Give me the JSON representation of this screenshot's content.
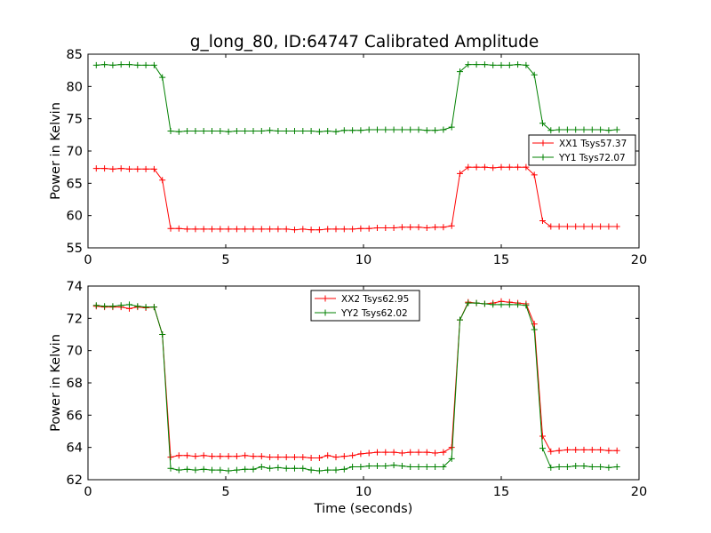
{
  "title": "g_long_80, ID:64747 Calibrated Amplitude",
  "chart_data": [
    {
      "type": "line",
      "ylabel": "Power in Kelvin",
      "xlabel": "",
      "xlim": [
        0,
        20
      ],
      "ylim": [
        55,
        85
      ],
      "x_ticks": [
        0,
        5,
        10,
        15,
        20
      ],
      "y_ticks": [
        55,
        60,
        65,
        70,
        75,
        80,
        85
      ],
      "grid": false,
      "legend_position": "right",
      "series": [
        {
          "name": "XX1 Tsys57.37",
          "color": "#ff0000",
          "x": [
            0.3,
            0.6,
            0.9,
            1.2,
            1.5,
            1.8,
            2.1,
            2.4,
            2.7,
            3.0,
            3.3,
            3.6,
            3.9,
            4.2,
            4.5,
            4.8,
            5.1,
            5.4,
            5.7,
            6.0,
            6.3,
            6.6,
            6.9,
            7.2,
            7.5,
            7.8,
            8.1,
            8.4,
            8.7,
            9.0,
            9.3,
            9.6,
            9.9,
            10.2,
            10.5,
            10.8,
            11.1,
            11.4,
            11.7,
            12.0,
            12.3,
            12.6,
            12.9,
            13.2,
            13.5,
            13.8,
            14.1,
            14.4,
            14.7,
            15.0,
            15.3,
            15.6,
            15.9,
            16.2,
            16.5,
            16.8,
            17.1,
            17.4,
            17.7,
            18.0,
            18.3,
            18.6,
            18.9,
            19.2
          ],
          "y": [
            67.3,
            67.3,
            67.2,
            67.3,
            67.2,
            67.2,
            67.2,
            67.2,
            65.5,
            58.0,
            58.0,
            57.9,
            57.9,
            57.9,
            57.9,
            57.9,
            57.9,
            57.9,
            57.9,
            57.9,
            57.9,
            57.9,
            57.9,
            57.9,
            57.8,
            57.9,
            57.8,
            57.8,
            57.9,
            57.9,
            57.9,
            57.9,
            58.0,
            58.0,
            58.1,
            58.1,
            58.1,
            58.2,
            58.2,
            58.2,
            58.1,
            58.2,
            58.2,
            58.4,
            66.5,
            67.5,
            67.5,
            67.5,
            67.4,
            67.5,
            67.5,
            67.5,
            67.5,
            66.3,
            59.2,
            58.3,
            58.3,
            58.3,
            58.3,
            58.3,
            58.3,
            58.3,
            58.3,
            58.3
          ]
        },
        {
          "name": "YY1 Tsys72.07",
          "color": "#008000",
          "x": [
            0.3,
            0.6,
            0.9,
            1.2,
            1.5,
            1.8,
            2.1,
            2.4,
            2.7,
            3.0,
            3.3,
            3.6,
            3.9,
            4.2,
            4.5,
            4.8,
            5.1,
            5.4,
            5.7,
            6.0,
            6.3,
            6.6,
            6.9,
            7.2,
            7.5,
            7.8,
            8.1,
            8.4,
            8.7,
            9.0,
            9.3,
            9.6,
            9.9,
            10.2,
            10.5,
            10.8,
            11.1,
            11.4,
            11.7,
            12.0,
            12.3,
            12.6,
            12.9,
            13.2,
            13.5,
            13.8,
            14.1,
            14.4,
            14.7,
            15.0,
            15.3,
            15.6,
            15.9,
            16.2,
            16.5,
            16.8,
            17.1,
            17.4,
            17.7,
            18.0,
            18.3,
            18.6,
            18.9,
            19.2
          ],
          "y": [
            83.3,
            83.4,
            83.3,
            83.4,
            83.4,
            83.3,
            83.3,
            83.3,
            81.4,
            73.1,
            73.0,
            73.1,
            73.1,
            73.1,
            73.1,
            73.1,
            73.0,
            73.1,
            73.1,
            73.1,
            73.1,
            73.2,
            73.1,
            73.1,
            73.1,
            73.1,
            73.1,
            73.0,
            73.1,
            73.0,
            73.2,
            73.2,
            73.2,
            73.3,
            73.3,
            73.3,
            73.3,
            73.3,
            73.3,
            73.3,
            73.2,
            73.2,
            73.3,
            73.7,
            82.3,
            83.4,
            83.4,
            83.4,
            83.3,
            83.3,
            83.3,
            83.4,
            83.3,
            81.8,
            74.3,
            73.2,
            73.3,
            73.3,
            73.3,
            73.3,
            73.3,
            73.3,
            73.2,
            73.3
          ]
        }
      ]
    },
    {
      "type": "line",
      "ylabel": "Power in Kelvin",
      "xlabel": "Time (seconds)",
      "xlim": [
        0,
        20
      ],
      "ylim": [
        62,
        74
      ],
      "x_ticks": [
        0,
        5,
        10,
        15,
        20
      ],
      "y_ticks": [
        62,
        64,
        66,
        68,
        70,
        72,
        74
      ],
      "grid": false,
      "legend_position": "top-center",
      "series": [
        {
          "name": "XX2 Tsys62.95",
          "color": "#ff0000",
          "x": [
            0.3,
            0.6,
            0.9,
            1.2,
            1.5,
            1.8,
            2.1,
            2.4,
            2.7,
            3.0,
            3.3,
            3.6,
            3.9,
            4.2,
            4.5,
            4.8,
            5.1,
            5.4,
            5.7,
            6.0,
            6.3,
            6.6,
            6.9,
            7.2,
            7.5,
            7.8,
            8.1,
            8.4,
            8.7,
            9.0,
            9.3,
            9.6,
            9.9,
            10.2,
            10.5,
            10.8,
            11.1,
            11.4,
            11.7,
            12.0,
            12.3,
            12.6,
            12.9,
            13.2,
            13.5,
            13.8,
            14.1,
            14.4,
            14.7,
            15.0,
            15.3,
            15.6,
            15.9,
            16.2,
            16.5,
            16.8,
            17.1,
            17.4,
            17.7,
            18.0,
            18.3,
            18.6,
            18.9,
            19.2
          ],
          "y": [
            72.75,
            72.7,
            72.7,
            72.7,
            72.6,
            72.7,
            72.65,
            72.7,
            71.0,
            63.4,
            63.5,
            63.5,
            63.45,
            63.5,
            63.45,
            63.45,
            63.45,
            63.45,
            63.5,
            63.45,
            63.45,
            63.4,
            63.4,
            63.4,
            63.4,
            63.4,
            63.35,
            63.35,
            63.5,
            63.4,
            63.45,
            63.5,
            63.6,
            63.65,
            63.7,
            63.7,
            63.7,
            63.65,
            63.7,
            63.7,
            63.7,
            63.65,
            63.7,
            64.0,
            71.9,
            73.0,
            72.95,
            72.9,
            72.95,
            73.05,
            73.0,
            72.95,
            72.9,
            71.65,
            64.7,
            63.75,
            63.8,
            63.85,
            63.85,
            63.85,
            63.85,
            63.85,
            63.8,
            63.8
          ]
        },
        {
          "name": "YY2 Tsys62.02",
          "color": "#008000",
          "x": [
            0.3,
            0.6,
            0.9,
            1.2,
            1.5,
            1.8,
            2.1,
            2.4,
            2.7,
            3.0,
            3.3,
            3.6,
            3.9,
            4.2,
            4.5,
            4.8,
            5.1,
            5.4,
            5.7,
            6.0,
            6.3,
            6.6,
            6.9,
            7.2,
            7.5,
            7.8,
            8.1,
            8.4,
            8.7,
            9.0,
            9.3,
            9.6,
            9.9,
            10.2,
            10.5,
            10.8,
            11.1,
            11.4,
            11.7,
            12.0,
            12.3,
            12.6,
            12.9,
            13.2,
            13.5,
            13.8,
            14.1,
            14.4,
            14.7,
            15.0,
            15.3,
            15.6,
            15.9,
            16.2,
            16.5,
            16.8,
            17.1,
            17.4,
            17.7,
            18.0,
            18.3,
            18.6,
            18.9,
            19.2
          ],
          "y": [
            72.8,
            72.75,
            72.75,
            72.8,
            72.85,
            72.75,
            72.7,
            72.7,
            71.0,
            62.7,
            62.6,
            62.65,
            62.6,
            62.65,
            62.6,
            62.6,
            62.55,
            62.6,
            62.65,
            62.65,
            62.8,
            62.7,
            62.75,
            62.7,
            62.7,
            62.7,
            62.6,
            62.55,
            62.6,
            62.6,
            62.65,
            62.8,
            62.8,
            62.85,
            62.85,
            62.85,
            62.9,
            62.85,
            62.8,
            62.8,
            62.8,
            62.8,
            62.8,
            63.3,
            71.9,
            72.95,
            72.95,
            72.9,
            72.85,
            72.85,
            72.85,
            72.85,
            72.8,
            71.3,
            63.95,
            62.75,
            62.8,
            62.8,
            62.85,
            62.85,
            62.8,
            62.8,
            62.75,
            62.8
          ]
        }
      ]
    }
  ]
}
